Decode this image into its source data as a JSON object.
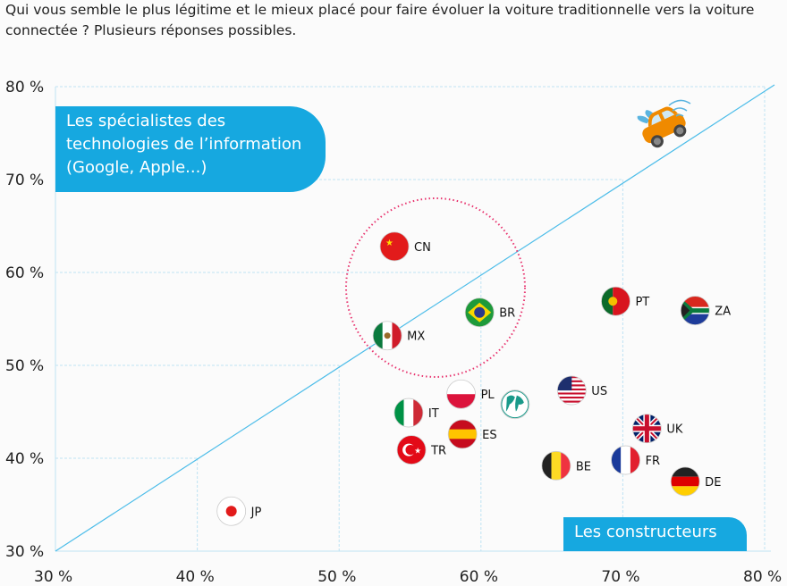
{
  "chart_data": {
    "type": "scatter",
    "title": "Qui vous semble le plus légitime et le mieux placé pour faire évoluer la voiture traditionnelle vers la voiture connectée ? Plusieurs réponses possibles.",
    "xlabel": "Les constructeurs",
    "ylabel": "Les spécialistes des technologies de l’information (Google, Apple...)",
    "xlim": [
      30,
      80
    ],
    "ylim": [
      30,
      80
    ],
    "x_ticks": [
      "30 %",
      "40 %",
      "50 %",
      "60 %",
      "70 %",
      "80 %"
    ],
    "y_ticks": [
      "30 %",
      "40 %",
      "50 %",
      "60 %",
      "70 %",
      "80 %"
    ],
    "tick_values": [
      30,
      40,
      50,
      60,
      70,
      80
    ],
    "diagonal": "y = x",
    "grid": "stepped dashed",
    "highlight_circle": [
      "CN",
      "BR",
      "MX"
    ],
    "points": [
      {
        "label": "CN",
        "x": 53.9,
        "y": 62.8,
        "flag": "china"
      },
      {
        "label": "BR",
        "x": 59.9,
        "y": 55.7,
        "flag": "brazil"
      },
      {
        "label": "MX",
        "x": 53.4,
        "y": 53.2,
        "flag": "mexico"
      },
      {
        "label": "PT",
        "x": 69.5,
        "y": 56.9,
        "flag": "portugal"
      },
      {
        "label": "ZA",
        "x": 75.1,
        "y": 55.9,
        "flag": "south-africa"
      },
      {
        "label": "US",
        "x": 66.4,
        "y": 47.3,
        "flag": "usa"
      },
      {
        "label": "PL",
        "x": 58.6,
        "y": 46.9,
        "flag": "poland"
      },
      {
        "label": "",
        "x": 62.4,
        "y": 45.8,
        "flag": "globe"
      },
      {
        "label": "IT",
        "x": 54.9,
        "y": 44.9,
        "flag": "italy"
      },
      {
        "label": "ES",
        "x": 58.7,
        "y": 42.6,
        "flag": "spain"
      },
      {
        "label": "TR",
        "x": 55.1,
        "y": 40.9,
        "flag": "turkey"
      },
      {
        "label": "UK",
        "x": 71.7,
        "y": 43.2,
        "flag": "uk"
      },
      {
        "label": "BE",
        "x": 65.3,
        "y": 39.2,
        "flag": "belgium"
      },
      {
        "label": "FR",
        "x": 70.2,
        "y": 39.8,
        "flag": "france"
      },
      {
        "label": "DE",
        "x": 74.4,
        "y": 37.5,
        "flag": "germany"
      },
      {
        "label": "JP",
        "x": 42.4,
        "y": 34.3,
        "flag": "japan"
      }
    ],
    "colors": {
      "accent": "#16a8e0",
      "highlight": "#e8336e",
      "car": "#f08a00"
    }
  }
}
